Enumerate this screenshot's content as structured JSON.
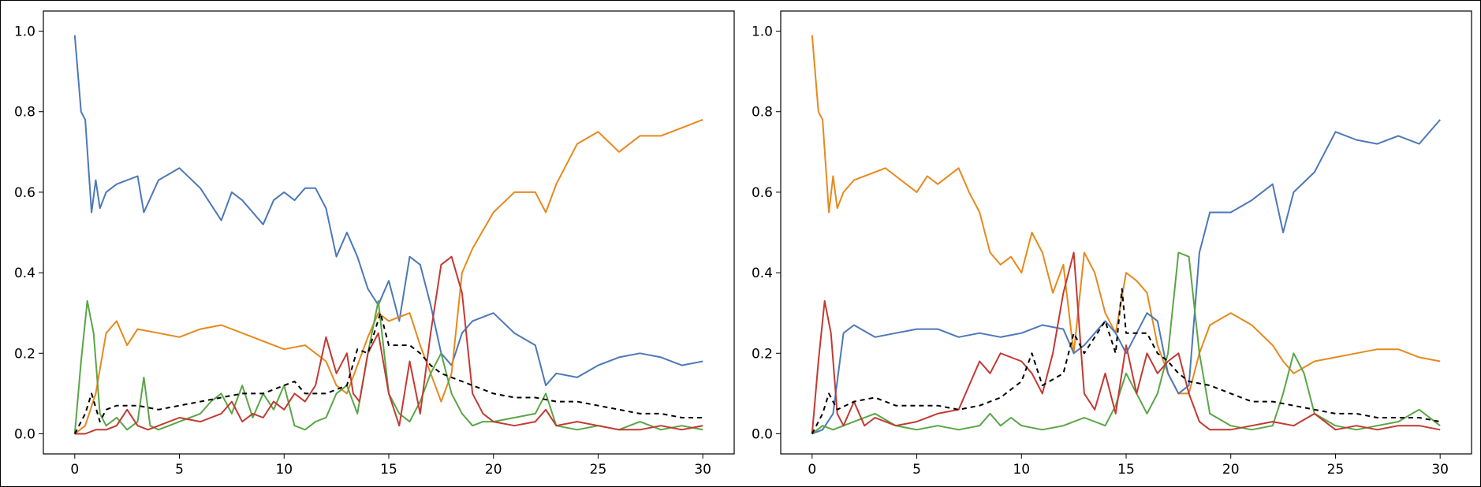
{
  "chart_data": [
    {
      "type": "line",
      "title": "",
      "xlabel": "",
      "ylabel": "",
      "xlim": [
        -1.5,
        31.5
      ],
      "ylim": [
        -0.05,
        1.05
      ],
      "xticks": [
        0,
        5,
        10,
        15,
        20,
        25,
        30
      ],
      "xtick_labels": [
        "0",
        "5",
        "10",
        "15",
        "20",
        "25",
        "30"
      ],
      "yticks": [
        0.0,
        0.2,
        0.4,
        0.6,
        0.8,
        1.0
      ],
      "ytick_labels": [
        "0.0",
        "0.2",
        "0.4",
        "0.6",
        "0.8",
        "1.0"
      ],
      "grid": false,
      "series": [
        {
          "name": "blue",
          "color": "#4c78b8",
          "dash": "",
          "x": [
            0,
            0.3,
            0.5,
            0.8,
            1.0,
            1.2,
            1.5,
            2.0,
            3.0,
            3.3,
            4.0,
            5.0,
            6.0,
            7.0,
            7.5,
            8.0,
            9.0,
            9.5,
            10.0,
            10.5,
            11.0,
            11.5,
            12.0,
            12.5,
            13.0,
            13.5,
            14.0,
            14.5,
            15.0,
            15.5,
            16.0,
            16.5,
            17.0,
            17.5,
            18.0,
            18.5,
            19.0,
            20.0,
            21.0,
            22.0,
            22.5,
            23.0,
            24.0,
            25.0,
            26.0,
            27.0,
            28.0,
            29.0,
            30.0
          ],
          "y": [
            0.99,
            0.8,
            0.78,
            0.55,
            0.63,
            0.56,
            0.6,
            0.62,
            0.64,
            0.55,
            0.63,
            0.66,
            0.61,
            0.53,
            0.6,
            0.58,
            0.52,
            0.58,
            0.6,
            0.58,
            0.61,
            0.61,
            0.56,
            0.44,
            0.5,
            0.44,
            0.36,
            0.32,
            0.38,
            0.28,
            0.44,
            0.42,
            0.32,
            0.2,
            0.17,
            0.25,
            0.28,
            0.3,
            0.25,
            0.22,
            0.12,
            0.15,
            0.14,
            0.17,
            0.19,
            0.2,
            0.19,
            0.17,
            0.18
          ]
        },
        {
          "name": "orange",
          "color": "#e6891d",
          "dash": "",
          "x": [
            0,
            0.5,
            1.0,
            1.5,
            2.0,
            2.5,
            3.0,
            4.0,
            5.0,
            6.0,
            7.0,
            8.0,
            9.0,
            10.0,
            11.0,
            12.0,
            12.5,
            13.0,
            14.0,
            14.5,
            15.0,
            16.0,
            16.5,
            17.0,
            17.5,
            18.0,
            18.5,
            19.0,
            20.0,
            21.0,
            22.0,
            22.5,
            23.0,
            24.0,
            25.0,
            26.0,
            27.0,
            28.0,
            29.0,
            30.0
          ],
          "y": [
            0.0,
            0.02,
            0.1,
            0.25,
            0.28,
            0.22,
            0.26,
            0.25,
            0.24,
            0.26,
            0.27,
            0.25,
            0.23,
            0.21,
            0.22,
            0.18,
            0.12,
            0.1,
            0.24,
            0.3,
            0.28,
            0.3,
            0.22,
            0.15,
            0.08,
            0.15,
            0.4,
            0.46,
            0.55,
            0.6,
            0.6,
            0.55,
            0.62,
            0.72,
            0.75,
            0.7,
            0.74,
            0.74,
            0.76,
            0.78
          ]
        },
        {
          "name": "green",
          "color": "#5aa546",
          "dash": "",
          "x": [
            0,
            0.3,
            0.6,
            0.9,
            1.2,
            1.5,
            2.0,
            2.5,
            3.0,
            3.3,
            3.6,
            4.0,
            5.0,
            6.0,
            6.5,
            7.0,
            7.5,
            8.0,
            8.5,
            9.0,
            9.5,
            10.0,
            10.5,
            11.0,
            11.5,
            12.0,
            12.5,
            13.0,
            13.5,
            14.0,
            14.5,
            15.0,
            15.5,
            16.0,
            16.5,
            17.0,
            17.5,
            18.0,
            18.5,
            19.0,
            19.5,
            20.0,
            21.0,
            22.0,
            22.5,
            23.0,
            24.0,
            25.0,
            26.0,
            27.0,
            28.0,
            29.0,
            30.0
          ],
          "y": [
            0.0,
            0.18,
            0.33,
            0.25,
            0.05,
            0.02,
            0.04,
            0.01,
            0.03,
            0.14,
            0.02,
            0.01,
            0.03,
            0.05,
            0.08,
            0.1,
            0.05,
            0.12,
            0.04,
            0.1,
            0.06,
            0.12,
            0.02,
            0.01,
            0.03,
            0.04,
            0.1,
            0.12,
            0.05,
            0.2,
            0.33,
            0.1,
            0.05,
            0.03,
            0.08,
            0.15,
            0.2,
            0.1,
            0.05,
            0.02,
            0.03,
            0.03,
            0.04,
            0.05,
            0.1,
            0.02,
            0.01,
            0.02,
            0.01,
            0.03,
            0.01,
            0.02,
            0.01
          ]
        },
        {
          "name": "red",
          "color": "#c23a33",
          "dash": "",
          "x": [
            0,
            0.5,
            1.0,
            1.5,
            2.0,
            2.5,
            3.0,
            3.5,
            4.0,
            5.0,
            6.0,
            7.0,
            7.5,
            8.0,
            8.5,
            9.0,
            9.5,
            10.0,
            10.5,
            11.0,
            11.5,
            12.0,
            12.5,
            13.0,
            13.3,
            13.6,
            14.0,
            14.5,
            15.0,
            15.5,
            16.0,
            16.5,
            17.0,
            17.5,
            18.0,
            18.5,
            19.0,
            19.5,
            20.0,
            21.0,
            22.0,
            22.5,
            23.0,
            24.0,
            25.0,
            26.0,
            27.0,
            28.0,
            29.0,
            30.0
          ],
          "y": [
            0.0,
            0.0,
            0.01,
            0.01,
            0.02,
            0.06,
            0.02,
            0.01,
            0.02,
            0.04,
            0.03,
            0.05,
            0.08,
            0.03,
            0.05,
            0.04,
            0.08,
            0.06,
            0.1,
            0.08,
            0.12,
            0.24,
            0.15,
            0.2,
            0.1,
            0.08,
            0.2,
            0.25,
            0.1,
            0.02,
            0.18,
            0.05,
            0.25,
            0.42,
            0.44,
            0.35,
            0.1,
            0.05,
            0.03,
            0.02,
            0.03,
            0.06,
            0.02,
            0.03,
            0.02,
            0.01,
            0.01,
            0.02,
            0.01,
            0.02
          ]
        },
        {
          "name": "dashed",
          "color": "#000000",
          "dash": "6,5",
          "x": [
            0,
            0.5,
            0.8,
            1.2,
            1.5,
            2.0,
            3.0,
            4.0,
            5.0,
            6.0,
            7.0,
            8.0,
            9.0,
            10.0,
            10.5,
            11.0,
            12.0,
            13.0,
            13.5,
            14.0,
            14.6,
            15.0,
            16.0,
            16.5,
            17.0,
            17.5,
            18.0,
            19.0,
            20.0,
            21.0,
            22.0,
            23.0,
            24.0,
            25.0,
            26.0,
            27.0,
            28.0,
            29.0,
            30.0
          ],
          "y": [
            0.0,
            0.05,
            0.1,
            0.03,
            0.06,
            0.07,
            0.07,
            0.06,
            0.07,
            0.08,
            0.09,
            0.1,
            0.1,
            0.12,
            0.13,
            0.1,
            0.1,
            0.12,
            0.21,
            0.2,
            0.3,
            0.22,
            0.22,
            0.2,
            0.17,
            0.15,
            0.14,
            0.12,
            0.1,
            0.09,
            0.09,
            0.08,
            0.08,
            0.07,
            0.06,
            0.05,
            0.05,
            0.04,
            0.04
          ]
        }
      ]
    },
    {
      "type": "line",
      "title": "",
      "xlabel": "",
      "ylabel": "",
      "xlim": [
        -1.5,
        31.5
      ],
      "ylim": [
        -0.05,
        1.05
      ],
      "xticks": [
        0,
        5,
        10,
        15,
        20,
        25,
        30
      ],
      "xtick_labels": [
        "0",
        "5",
        "10",
        "15",
        "20",
        "25",
        "30"
      ],
      "yticks": [
        0.0,
        0.2,
        0.4,
        0.6,
        0.8,
        1.0
      ],
      "ytick_labels": [
        "0.0",
        "0.2",
        "0.4",
        "0.6",
        "0.8",
        "1.0"
      ],
      "grid": false,
      "series": [
        {
          "name": "orange",
          "color": "#e6891d",
          "dash": "",
          "x": [
            0,
            0.3,
            0.5,
            0.8,
            1.0,
            1.2,
            1.5,
            2.0,
            3.0,
            3.5,
            4.0,
            5.0,
            5.5,
            6.0,
            7.0,
            7.5,
            8.0,
            8.5,
            9.0,
            9.5,
            10.0,
            10.5,
            11.0,
            11.5,
            12.0,
            12.5,
            13.0,
            13.5,
            14.0,
            14.5,
            15.0,
            15.5,
            16.0,
            16.5,
            17.0,
            17.5,
            18.0,
            18.5,
            19.0,
            20.0,
            21.0,
            22.0,
            22.5,
            23.0,
            24.0,
            25.0,
            26.0,
            27.0,
            28.0,
            29.0,
            30.0
          ],
          "y": [
            0.99,
            0.8,
            0.78,
            0.55,
            0.64,
            0.56,
            0.6,
            0.63,
            0.65,
            0.66,
            0.64,
            0.6,
            0.64,
            0.62,
            0.66,
            0.6,
            0.55,
            0.45,
            0.42,
            0.44,
            0.4,
            0.5,
            0.45,
            0.35,
            0.42,
            0.2,
            0.45,
            0.4,
            0.3,
            0.25,
            0.4,
            0.38,
            0.35,
            0.22,
            0.15,
            0.1,
            0.1,
            0.2,
            0.27,
            0.3,
            0.27,
            0.22,
            0.18,
            0.15,
            0.18,
            0.19,
            0.2,
            0.21,
            0.21,
            0.19,
            0.18
          ]
        },
        {
          "name": "blue",
          "color": "#4c78b8",
          "dash": "",
          "x": [
            0,
            0.5,
            1.0,
            1.5,
            2.0,
            3.0,
            4.0,
            5.0,
            6.0,
            7.0,
            8.0,
            9.0,
            10.0,
            11.0,
            12.0,
            12.5,
            13.0,
            14.0,
            14.5,
            15.0,
            16.0,
            16.5,
            17.0,
            17.5,
            18.0,
            18.5,
            19.0,
            20.0,
            21.0,
            22.0,
            22.5,
            23.0,
            24.0,
            25.0,
            26.0,
            27.0,
            28.0,
            29.0,
            30.0
          ],
          "y": [
            0.0,
            0.01,
            0.05,
            0.25,
            0.27,
            0.24,
            0.25,
            0.26,
            0.26,
            0.24,
            0.25,
            0.24,
            0.25,
            0.27,
            0.26,
            0.2,
            0.22,
            0.28,
            0.25,
            0.2,
            0.3,
            0.28,
            0.15,
            0.1,
            0.12,
            0.45,
            0.55,
            0.55,
            0.58,
            0.62,
            0.5,
            0.6,
            0.65,
            0.75,
            0.73,
            0.72,
            0.74,
            0.72,
            0.78
          ]
        },
        {
          "name": "green",
          "color": "#5aa546",
          "dash": "",
          "x": [
            0,
            0.5,
            1.0,
            1.5,
            2.0,
            3.0,
            4.0,
            5.0,
            6.0,
            7.0,
            8.0,
            8.5,
            9.0,
            9.5,
            10.0,
            11.0,
            12.0,
            13.0,
            14.0,
            14.5,
            15.0,
            16.0,
            16.5,
            17.0,
            17.5,
            18.0,
            18.5,
            19.0,
            20.0,
            21.0,
            22.0,
            22.5,
            23.0,
            23.5,
            24.0,
            25.0,
            26.0,
            27.0,
            28.0,
            29.0,
            30.0
          ],
          "y": [
            0.0,
            0.02,
            0.01,
            0.02,
            0.03,
            0.05,
            0.02,
            0.01,
            0.02,
            0.01,
            0.02,
            0.05,
            0.02,
            0.04,
            0.02,
            0.01,
            0.02,
            0.04,
            0.02,
            0.07,
            0.15,
            0.05,
            0.1,
            0.2,
            0.45,
            0.44,
            0.2,
            0.05,
            0.02,
            0.01,
            0.02,
            0.1,
            0.2,
            0.15,
            0.05,
            0.02,
            0.01,
            0.02,
            0.03,
            0.06,
            0.02
          ]
        },
        {
          "name": "red",
          "color": "#c23a33",
          "dash": "",
          "x": [
            0,
            0.3,
            0.6,
            0.9,
            1.2,
            1.5,
            2.0,
            2.5,
            3.0,
            4.0,
            5.0,
            6.0,
            7.0,
            8.0,
            8.5,
            9.0,
            10.0,
            10.5,
            11.0,
            11.5,
            12.0,
            12.5,
            13.0,
            13.5,
            14.0,
            14.5,
            15.0,
            15.5,
            16.0,
            16.5,
            17.0,
            17.5,
            18.0,
            18.5,
            19.0,
            20.0,
            21.0,
            22.0,
            23.0,
            24.0,
            25.0,
            26.0,
            27.0,
            28.0,
            29.0,
            30.0
          ],
          "y": [
            0.0,
            0.18,
            0.33,
            0.25,
            0.05,
            0.02,
            0.08,
            0.02,
            0.04,
            0.02,
            0.03,
            0.05,
            0.06,
            0.18,
            0.15,
            0.2,
            0.18,
            0.15,
            0.1,
            0.2,
            0.35,
            0.45,
            0.1,
            0.06,
            0.15,
            0.05,
            0.22,
            0.1,
            0.2,
            0.15,
            0.18,
            0.2,
            0.1,
            0.03,
            0.01,
            0.01,
            0.02,
            0.03,
            0.02,
            0.05,
            0.01,
            0.02,
            0.01,
            0.02,
            0.02,
            0.01
          ]
        },
        {
          "name": "dashed",
          "color": "#000000",
          "dash": "6,5",
          "x": [
            0,
            0.5,
            0.8,
            1.2,
            2.0,
            3.0,
            4.0,
            5.0,
            6.0,
            7.0,
            8.0,
            9.0,
            10.0,
            10.5,
            11.0,
            12.0,
            12.5,
            13.0,
            14.0,
            14.5,
            14.8,
            15.0,
            16.0,
            16.5,
            17.0,
            17.5,
            18.0,
            19.0,
            20.0,
            21.0,
            22.0,
            23.0,
            24.0,
            25.0,
            26.0,
            27.0,
            28.0,
            29.0,
            30.0
          ],
          "y": [
            0.0,
            0.05,
            0.1,
            0.06,
            0.08,
            0.09,
            0.07,
            0.07,
            0.07,
            0.06,
            0.07,
            0.09,
            0.13,
            0.2,
            0.12,
            0.15,
            0.25,
            0.2,
            0.28,
            0.2,
            0.36,
            0.25,
            0.25,
            0.2,
            0.18,
            0.15,
            0.13,
            0.12,
            0.1,
            0.08,
            0.08,
            0.07,
            0.06,
            0.05,
            0.05,
            0.04,
            0.04,
            0.04,
            0.03
          ]
        }
      ]
    }
  ]
}
